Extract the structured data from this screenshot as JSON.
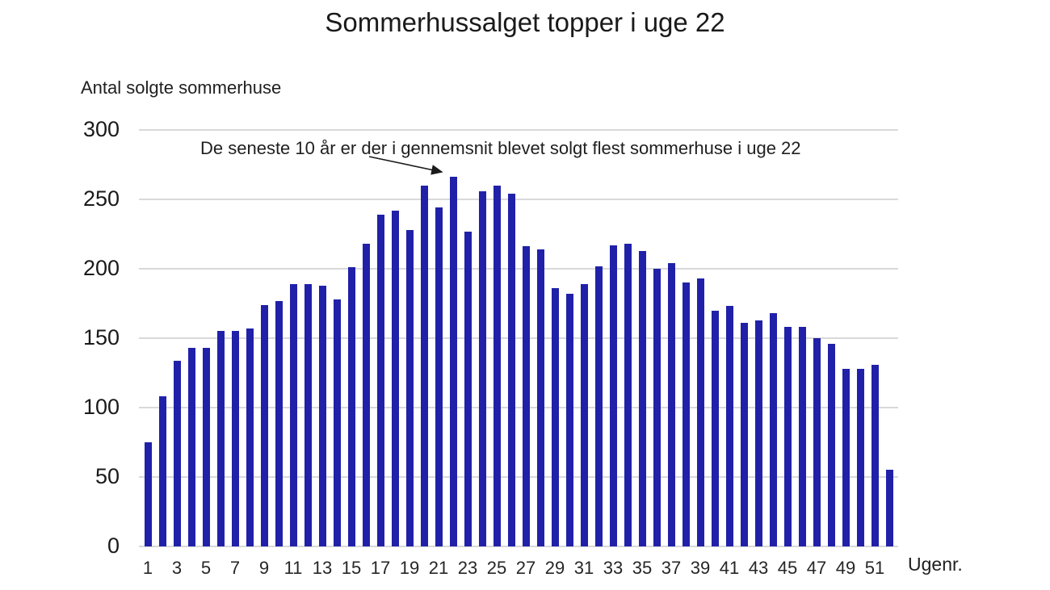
{
  "chart_data": {
    "type": "bar",
    "title": "Sommerhussalget topper i uge 22",
    "y_axis_title": "Antal solgte sommerhuse",
    "x_axis_title": "Ugenr.",
    "annotation": "De seneste 10 år er der i gennemsnit blevet solgt flest sommerhuse i uge 22",
    "categories": [
      1,
      2,
      3,
      4,
      5,
      6,
      7,
      8,
      9,
      10,
      11,
      12,
      13,
      14,
      15,
      16,
      17,
      18,
      19,
      20,
      21,
      22,
      23,
      24,
      25,
      26,
      27,
      28,
      29,
      30,
      31,
      32,
      33,
      34,
      35,
      36,
      37,
      38,
      39,
      40,
      41,
      42,
      43,
      44,
      45,
      46,
      47,
      48,
      49,
      50,
      51,
      52
    ],
    "values": [
      75,
      108,
      134,
      143,
      143,
      155,
      155,
      157,
      174,
      177,
      189,
      189,
      188,
      178,
      201,
      218,
      239,
      242,
      228,
      260,
      244,
      266,
      227,
      256,
      260,
      254,
      216,
      214,
      186,
      182,
      189,
      202,
      217,
      218,
      213,
      200,
      204,
      190,
      193,
      170,
      173,
      161,
      163,
      168,
      158,
      158,
      150,
      146,
      128,
      128,
      131,
      55
    ],
    "x_tick_labels": [
      "1",
      "3",
      "5",
      "7",
      "9",
      "11",
      "13",
      "15",
      "17",
      "19",
      "21",
      "23",
      "25",
      "27",
      "29",
      "31",
      "33",
      "35",
      "37",
      "39",
      "41",
      "43",
      "45",
      "47",
      "49",
      "51"
    ],
    "y_ticks": [
      0,
      50,
      100,
      150,
      200,
      250,
      300
    ],
    "ylim": [
      0,
      300
    ],
    "grid": true,
    "legend": "none",
    "bar_color": "#2021A8",
    "gridline_color": "#D9D9D9",
    "annotation_arrow_color": "#1a1a1a"
  }
}
